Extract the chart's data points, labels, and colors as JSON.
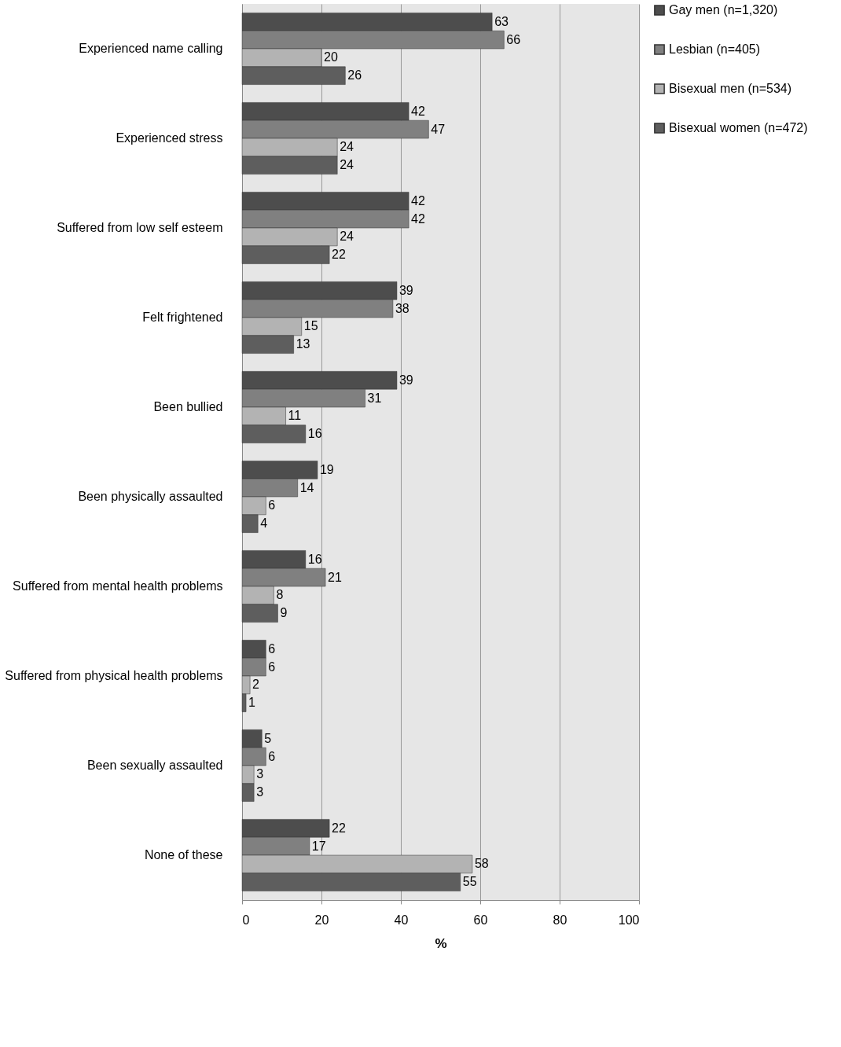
{
  "chart_data": {
    "type": "bar",
    "orientation": "horizontal",
    "xlabel": "%",
    "categories": [
      "Experienced name calling",
      "Experienced stress",
      "Suffered from low self esteem",
      "Felt frightened",
      "Been bullied",
      "Been physically assaulted",
      "Suffered from mental health problems",
      "Suffered from physical health problems",
      "Been sexually assaulted",
      "None of these"
    ],
    "series": [
      {
        "name": "Gay men (n=1,320)",
        "color": "#4d4d4d",
        "values": [
          63,
          42,
          42,
          39,
          39,
          19,
          16,
          6,
          5,
          22
        ]
      },
      {
        "name": "Lesbian (n=405)",
        "color": "#808080",
        "values": [
          66,
          47,
          42,
          38,
          31,
          14,
          21,
          6,
          6,
          17
        ]
      },
      {
        "name": "Bisexual men (n=534)",
        "color": "#b3b3b3",
        "values": [
          20,
          24,
          24,
          15,
          11,
          6,
          8,
          2,
          3,
          58
        ]
      },
      {
        "name": "Bisexual women (n=472)",
        "color": "#5e5e5e",
        "values": [
          26,
          24,
          22,
          13,
          16,
          4,
          9,
          1,
          3,
          55
        ]
      }
    ],
    "xlim": [
      0,
      100
    ],
    "xticks": [
      0,
      20,
      40,
      60,
      80,
      100
    ],
    "grid": "x",
    "legend": "right",
    "data_labels": true
  }
}
